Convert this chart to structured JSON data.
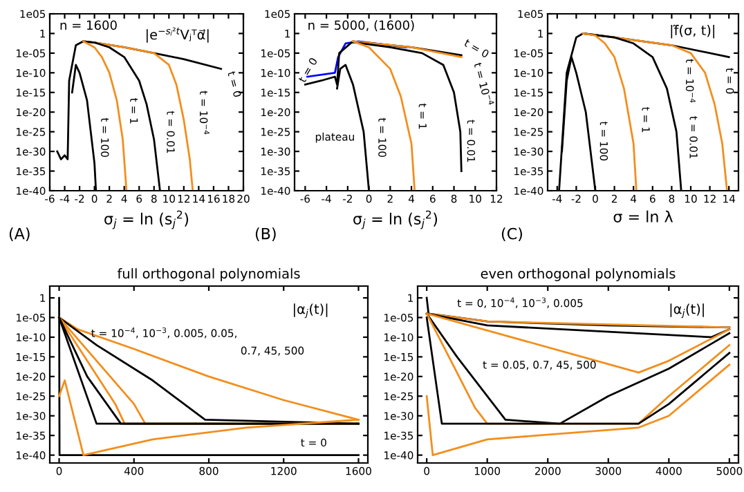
{
  "chart_data": [
    {
      "type": "line",
      "log": "y",
      "xlabel": "σ$_{j}$ = ln (s$_{j}$$^{2}$)",
      "xlim": [
        -6,
        20
      ],
      "xticks": [
        -6,
        -4,
        -2,
        0,
        2,
        4,
        6,
        8,
        10,
        12,
        14,
        16,
        18,
        20
      ],
      "ylim": [
        1e-40,
        100000.0
      ],
      "yticks": [
        {
          "value": 100000.0,
          "label": "1e05"
        },
        1,
        {
          "value": 1e-05,
          "label": "1e-05"
        },
        {
          "value": 1e-10,
          "label": "1e-10"
        },
        {
          "value": 1e-15,
          "label": "1e-15"
        },
        {
          "value": 1e-20,
          "label": "1e-20"
        },
        {
          "value": 1e-25,
          "label": "1e-25"
        },
        {
          "value": 1e-30,
          "label": "1e-30"
        },
        {
          "value": 1e-35,
          "label": "1e-35"
        },
        {
          "value": 1e-40,
          "label": "1e-40"
        }
      ],
      "series": [
        {
          "color": "#000000",
          "x": [
            -5,
            -4.5,
            -4,
            -3.6,
            -3.4,
            -2.5,
            -1.5,
            0,
            4,
            8,
            12,
            17
          ],
          "values": [
            1e-30,
            1e-32,
            1e-31,
            1e-32,
            1e-12,
            0.001,
            0.01,
            0.005,
            0.0003,
            1e-05,
            3e-07,
            1e-09
          ]
        },
        {
          "color": "#f28e1c",
          "x": [
            -1.5,
            0,
            4,
            8,
            10,
            11,
            12,
            12.8,
            13.2
          ],
          "values": [
            0.01,
            0.005,
            0.0003,
            1e-05,
            1e-08,
            1e-13,
            1e-22,
            1e-32,
            1e-40
          ]
        },
        {
          "color": "#000000",
          "x": [
            -1.5,
            0,
            2,
            4,
            6,
            7,
            8,
            8.8
          ],
          "values": [
            0.01,
            0.005,
            0.0003,
            1e-06,
            1e-12,
            1e-18,
            1e-27,
            1e-40
          ]
        },
        {
          "color": "#f28e1c",
          "x": [
            -1.5,
            -1,
            0,
            1,
            2,
            3,
            3.8,
            4.3
          ],
          "values": [
            0.01,
            0.003,
            0.0003,
            1e-06,
            1e-10,
            1e-17,
            1e-27,
            1e-40
          ]
        },
        {
          "color": "#000000",
          "x": [
            -3,
            -2.5,
            -2,
            -1,
            -0.5,
            0,
            0.2
          ],
          "values": [
            1e-15,
            1e-08,
            1e-10,
            1e-17,
            1e-25,
            1e-33,
            1e-40
          ]
        }
      ],
      "annotations": [
        "(A)",
        "n = 1600",
        "|e$^{−sⱼ²t}$Vⱼᵀα⃗|",
        "t = 0",
        "t = 10$^{−4}$",
        "t = 0.01",
        "t = 1",
        "t = 100"
      ]
    },
    {
      "type": "line",
      "log": "y",
      "xlabel": "σ$_{j}$ = ln (s$_{j}$$^{2}$)",
      "xlim": [
        -7,
        12
      ],
      "xticks": [
        -6,
        -4,
        -2,
        0,
        2,
        4,
        6,
        8,
        10,
        12
      ],
      "ylim": [
        1e-40,
        100000.0
      ],
      "yticks": [
        {
          "value": 100000.0,
          "label": "1e05"
        },
        1,
        {
          "value": 1e-05,
          "label": "1e-05"
        },
        {
          "value": 1e-10,
          "label": "1e-10"
        },
        {
          "value": 1e-15,
          "label": "1e-15"
        },
        {
          "value": 1e-20,
          "label": "1e-20"
        },
        {
          "value": 1e-25,
          "label": "1e-25"
        },
        {
          "value": 1e-30,
          "label": "1e-30"
        },
        {
          "value": 1e-35,
          "label": "1e-35"
        },
        {
          "value": 1e-40,
          "label": "1e-40"
        }
      ],
      "series": [
        {
          "color": "#0000ff",
          "x": [
            -5.8,
            -3.2,
            -2.9,
            -2.2,
            -1,
            3.5
          ],
          "values": [
            1e-11,
            1e-10,
            1e-06,
            0.003,
            0.01,
            0.0003
          ]
        },
        {
          "color": "#000000",
          "x": [
            -6,
            -4.5,
            -3.2,
            -3,
            -2.8,
            -1.5,
            4,
            8.7
          ],
          "values": [
            1e-13,
            1e-12,
            1e-11,
            1e-13,
            1e-05,
            0.01,
            0.0003,
            3e-06
          ]
        },
        {
          "color": "#f28e1c",
          "x": [
            -1.5,
            4,
            8.7
          ],
          "values": [
            0.01,
            0.0003,
            1e-06
          ]
        },
        {
          "color": "#000000",
          "x": [
            -1.5,
            2,
            5,
            7,
            8,
            8.6,
            8.7
          ],
          "values": [
            0.006,
            0.0003,
            1e-05,
            1e-08,
            1e-15,
            1e-25,
            1e-35
          ]
        },
        {
          "color": "#f28e1c",
          "x": [
            -1.5,
            0,
            2,
            3,
            4,
            4.3
          ],
          "values": [
            0.01,
            0.0003,
            1e-09,
            1e-16,
            1e-28,
            1e-40
          ]
        },
        {
          "color": "#000000",
          "x": [
            -3,
            -2.7,
            -2.2,
            -1.5,
            -0.5,
            0
          ],
          "values": [
            1e-14,
            1e-09,
            1e-08,
            1e-13,
            1e-25,
            1e-40
          ]
        }
      ],
      "annotations": [
        "(B)",
        "n = 5000, (1600)",
        "t = 0",
        "t = 0",
        "t = 10$^{−4}$",
        "plateau",
        "t = 0.01",
        "t = 1",
        "t = 100"
      ]
    },
    {
      "type": "line",
      "log": "y",
      "xlabel": "σ = ln λ",
      "xlim": [
        -5,
        15
      ],
      "xticks": [
        -4,
        -2,
        0,
        2,
        4,
        6,
        8,
        10,
        12,
        14
      ],
      "ylim": [
        1e-40,
        100000.0
      ],
      "yticks": [
        {
          "value": 100000.0,
          "label": "1e05"
        },
        1,
        {
          "value": 1e-05,
          "label": "1e-05"
        },
        {
          "value": 1e-10,
          "label": "1e-10"
        },
        {
          "value": 1e-15,
          "label": "1e-15"
        },
        {
          "value": 1e-20,
          "label": "1e-20"
        },
        {
          "value": 1e-25,
          "label": "1e-25"
        },
        {
          "value": 1e-30,
          "label": "1e-30"
        },
        {
          "value": 1e-35,
          "label": "1e-35"
        },
        {
          "value": 1e-40,
          "label": "1e-40"
        }
      ],
      "series": [
        {
          "color": "#000000",
          "x": [
            -3.8,
            -3,
            -2,
            -1.3,
            2,
            8,
            14
          ],
          "values": [
            1e-40,
            1e-10,
            0.1,
            1,
            0.1,
            0.001,
            1e-06
          ]
        },
        {
          "color": "#f28e1c",
          "x": [
            -1.3,
            2,
            8,
            10,
            11.5,
            12.5,
            13.3,
            13.8
          ],
          "values": [
            1,
            0.1,
            0.001,
            1e-05,
            1e-10,
            1e-18,
            1e-28,
            1e-40
          ]
        },
        {
          "color": "#000000",
          "x": [
            -1.3,
            2,
            4,
            6,
            7.5,
            8.5,
            9
          ],
          "values": [
            1,
            0.1,
            0.003,
            1e-06,
            1e-14,
            1e-25,
            1e-40
          ]
        },
        {
          "color": "#f28e1c",
          "x": [
            -1.3,
            0,
            1,
            2,
            3,
            4,
            4.3
          ],
          "values": [
            1,
            0.3,
            0.003,
            1e-06,
            1e-14,
            1e-28,
            1e-40
          ]
        },
        {
          "color": "#000000",
          "x": [
            -3.5,
            -3,
            -2.5,
            -2,
            -1,
            0
          ],
          "values": [
            1e-30,
            1e-12,
            1e-06,
            1e-10,
            1e-20,
            1e-40
          ]
        }
      ],
      "annotations": [
        "(C)",
        "|f̃(σ, t)|",
        "t = 0",
        "t = 10$^{−4}$",
        "t = 0.01",
        "t = 1",
        "t = 100"
      ]
    },
    {
      "type": "line",
      "log": "y",
      "title": "full orthogonal polynomials",
      "xlim": [
        -50,
        1650
      ],
      "xticks": [
        0,
        400,
        800,
        1200,
        1600
      ],
      "ylim": [
        1e-42,
        1000.0
      ],
      "yticks": [
        1,
        {
          "value": 1e-05,
          "label": "1e-05"
        },
        {
          "value": 1e-10,
          "label": "1e-10"
        },
        {
          "value": 1e-15,
          "label": "1e-15"
        },
        {
          "value": 1e-20,
          "label": "1e-20"
        },
        {
          "value": 1e-25,
          "label": "1e-25"
        },
        {
          "value": 1e-30,
          "label": "1e-30"
        },
        {
          "value": 1e-35,
          "label": "1e-35"
        },
        {
          "value": 1e-40,
          "label": "1e-40"
        }
      ],
      "series": [
        {
          "color": "#000000",
          "x": [
            0,
            2,
            1600
          ],
          "values": [
            1,
            1e-40,
            1e-40
          ]
        },
        {
          "color": "#f28e1c",
          "x": [
            0,
            100,
            400,
            800,
            1200,
            1600
          ],
          "values": [
            1e-05,
            1e-08,
            1e-13,
            1e-20,
            1e-26,
            1e-31
          ]
        },
        {
          "color": "#000000",
          "x": [
            0,
            200,
            500,
            780,
            1600
          ],
          "values": [
            1e-05,
            1e-12,
            1e-21,
            1e-31,
            1e-32
          ]
        },
        {
          "color": "#f28e1c",
          "x": [
            0,
            400,
            460,
            1600
          ],
          "values": [
            1e-05,
            1e-27,
            1e-32,
            1e-32
          ]
        },
        {
          "color": "#f28e1c",
          "x": [
            0,
            300,
            350,
            1600
          ],
          "values": [
            1e-05,
            1e-27,
            1e-32,
            1e-32
          ]
        },
        {
          "color": "#000000",
          "x": [
            0,
            150,
            330,
            1600
          ],
          "values": [
            1e-05,
            1e-20,
            1e-32,
            1e-32
          ]
        },
        {
          "color": "#000000",
          "x": [
            0,
            200,
            1600
          ],
          "values": [
            1e-05,
            1e-32,
            1e-32
          ]
        },
        {
          "color": "#f28e1c",
          "x": [
            0,
            30,
            130,
            500,
            1000,
            1600
          ],
          "values": [
            1e-25,
            1e-21,
            1e-40,
            1e-36,
            1e-33,
            1e-31
          ]
        }
      ],
      "annotations": [
        "|α$_{j}$(t)|",
        "t = 10$^{−4}$, 10$^{−3}$, 0.005, 0.05,",
        "0.7, 45, 500",
        "t = 0"
      ]
    },
    {
      "type": "line",
      "log": "y",
      "title": "even orthogonal polynomials",
      "xlim": [
        -150,
        5150
      ],
      "xticks": [
        0,
        1000,
        2000,
        3000,
        4000,
        5000
      ],
      "ylim": [
        1e-42,
        1000.0
      ],
      "yticks": [
        1,
        {
          "value": 1e-05,
          "label": "1e-05"
        },
        {
          "value": 1e-10,
          "label": "1e-10"
        },
        {
          "value": 1e-15,
          "label": "1e-15"
        },
        {
          "value": 1e-20,
          "label": "1e-20"
        },
        {
          "value": 1e-25,
          "label": "1e-25"
        },
        {
          "value": 1e-30,
          "label": "1e-30"
        },
        {
          "value": 1e-35,
          "label": "1e-35"
        },
        {
          "value": 1e-40,
          "label": "1e-40"
        }
      ],
      "series": [
        {
          "color": "#000000",
          "x": [
            0,
            30,
            1000,
            3000,
            5000
          ],
          "values": [
            1,
            0.0001,
            1e-06,
            1e-07,
            3e-08
          ]
        },
        {
          "color": "#f28e1c",
          "x": [
            0,
            1000,
            5000
          ],
          "values": [
            0.0001,
            1e-06,
            3e-08
          ]
        },
        {
          "color": "#000000",
          "x": [
            0,
            1000,
            4700,
            5000
          ],
          "values": [
            0.0001,
            1e-07,
            1e-10,
            1e-08
          ]
        },
        {
          "color": "#f28e1c",
          "x": [
            0,
            3500,
            4000,
            5000
          ],
          "values": [
            0.0001,
            1e-19,
            1e-16,
            1e-08
          ]
        },
        {
          "color": "#000000",
          "x": [
            0,
            500,
            1300,
            2200,
            3000,
            4000,
            5000
          ],
          "values": [
            0.0001,
            1e-15,
            1e-31,
            1e-32,
            1e-25,
            1e-18,
            1e-09
          ]
        },
        {
          "color": "#f28e1c",
          "x": [
            0,
            800,
            1000,
            3500,
            4000,
            5000
          ],
          "values": [
            0.0001,
            1e-28,
            1e-32,
            1e-32,
            1e-25,
            1e-12
          ]
        },
        {
          "color": "#000000",
          "x": [
            0,
            250,
            3500,
            4000,
            5000
          ],
          "values": [
            1e-05,
            1e-32,
            1e-32,
            1e-27,
            1e-14
          ]
        },
        {
          "color": "#f28e1c",
          "x": [
            0,
            100,
            1000,
            3500,
            4000,
            5000
          ],
          "values": [
            1e-25,
            1e-40,
            1e-36,
            1e-33,
            1e-30,
            1e-17
          ]
        }
      ],
      "annotations": [
        "|α$_{j}$(t)|",
        "t = 0, 10$^{−4}$, 10$^{−3}$, 0.005",
        "t = 0.05, 0.7, 45, 500"
      ]
    }
  ]
}
